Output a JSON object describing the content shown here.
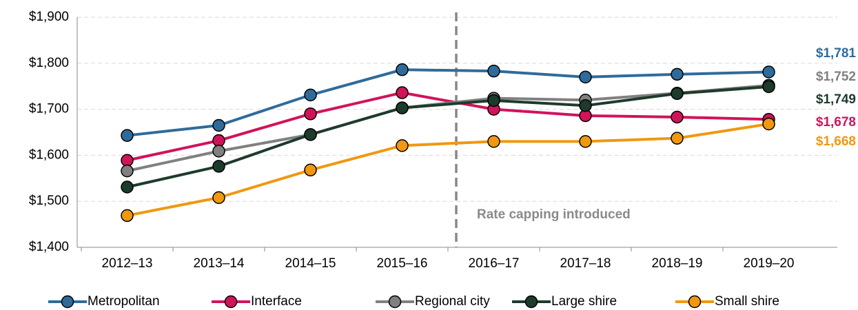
{
  "chart_data": {
    "type": "line",
    "annotation": "Rate capping introduced",
    "categories": [
      "2012–13",
      "2013–14",
      "2014–15",
      "2015–16",
      "2016–17",
      "2017–18",
      "2018–19",
      "2019–20"
    ],
    "series": [
      {
        "name": "Metropolitan",
        "color": "#2f6b9a",
        "values": [
          1643,
          1665,
          1731,
          1786,
          1783,
          1770,
          1776,
          1781
        ],
        "value_labels": [
          null,
          null,
          null,
          null,
          null,
          null,
          null,
          "$1,781"
        ]
      },
      {
        "name": "Interface",
        "color": "#d1135b",
        "values": [
          1589,
          1632,
          1690,
          1736,
          1700,
          1686,
          1683,
          1678
        ],
        "value_labels": [
          null,
          null,
          null,
          null,
          null,
          null,
          null,
          "$1,678"
        ]
      },
      {
        "name": "Regional city",
        "color": "#808080",
        "values": [
          1566,
          1609,
          1645,
          1703,
          1724,
          1720,
          1735,
          1752
        ],
        "value_labels": [
          null,
          null,
          null,
          null,
          null,
          null,
          null,
          "$1,752"
        ]
      },
      {
        "name": "Large shire",
        "color": "#1d3b2b",
        "values": [
          1531,
          1576,
          1645,
          1703,
          1719,
          1708,
          1734,
          1749
        ],
        "value_labels": [
          null,
          null,
          null,
          null,
          null,
          null,
          null,
          "$1,749"
        ]
      },
      {
        "name": "Small shire",
        "color": "#f0980f",
        "values": [
          1469,
          1508,
          1568,
          1621,
          1630,
          1630,
          1637,
          1668
        ],
        "value_labels": [
          null,
          null,
          null,
          null,
          null,
          null,
          null,
          "$1,668"
        ]
      }
    ],
    "ylim": [
      1400,
      1900
    ],
    "yticks": [
      {
        "value": 1400,
        "label": "$1,400"
      },
      {
        "value": 1500,
        "label": "$1,500"
      },
      {
        "value": 1600,
        "label": "$1,600"
      },
      {
        "value": 1700,
        "label": "$1,700"
      },
      {
        "value": 1800,
        "label": "$1,800"
      },
      {
        "value": 1900,
        "label": "$1,900"
      }
    ],
    "grid": true
  }
}
